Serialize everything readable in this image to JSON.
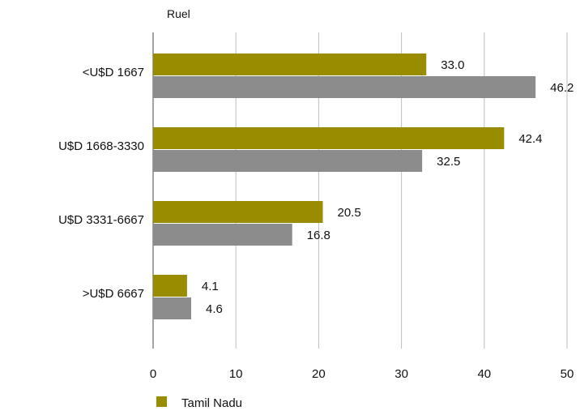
{
  "chart_data": {
    "type": "bar",
    "orientation": "horizontal",
    "title": "",
    "ylabel": "Ruel",
    "xlabel": "",
    "categories": [
      "<U$D 1667",
      "U$D 1668-3330",
      "U$D 3331-6667",
      ">U$D 6667"
    ],
    "series": [
      {
        "name": "Tamil Nadu",
        "values": [
          33.0,
          42.4,
          20.5,
          4.1
        ],
        "color": "#998c00"
      },
      {
        "values": [
          46.2,
          32.5,
          16.8,
          4.6
        ],
        "color": "#8c8c8c"
      }
    ],
    "value_labels": [
      [
        "33.0",
        "42.4",
        "20.5",
        "4.1"
      ],
      [
        "46.2",
        "32.5",
        "16.8",
        "4.6"
      ]
    ],
    "xlim": [
      0,
      50
    ],
    "xticks": [
      0,
      10,
      20,
      30,
      40,
      50
    ],
    "xtick_labels": [
      "0",
      "10",
      "20",
      "30",
      "40",
      "50"
    ],
    "grid": "vertical",
    "legend_position": "bottom-left"
  }
}
